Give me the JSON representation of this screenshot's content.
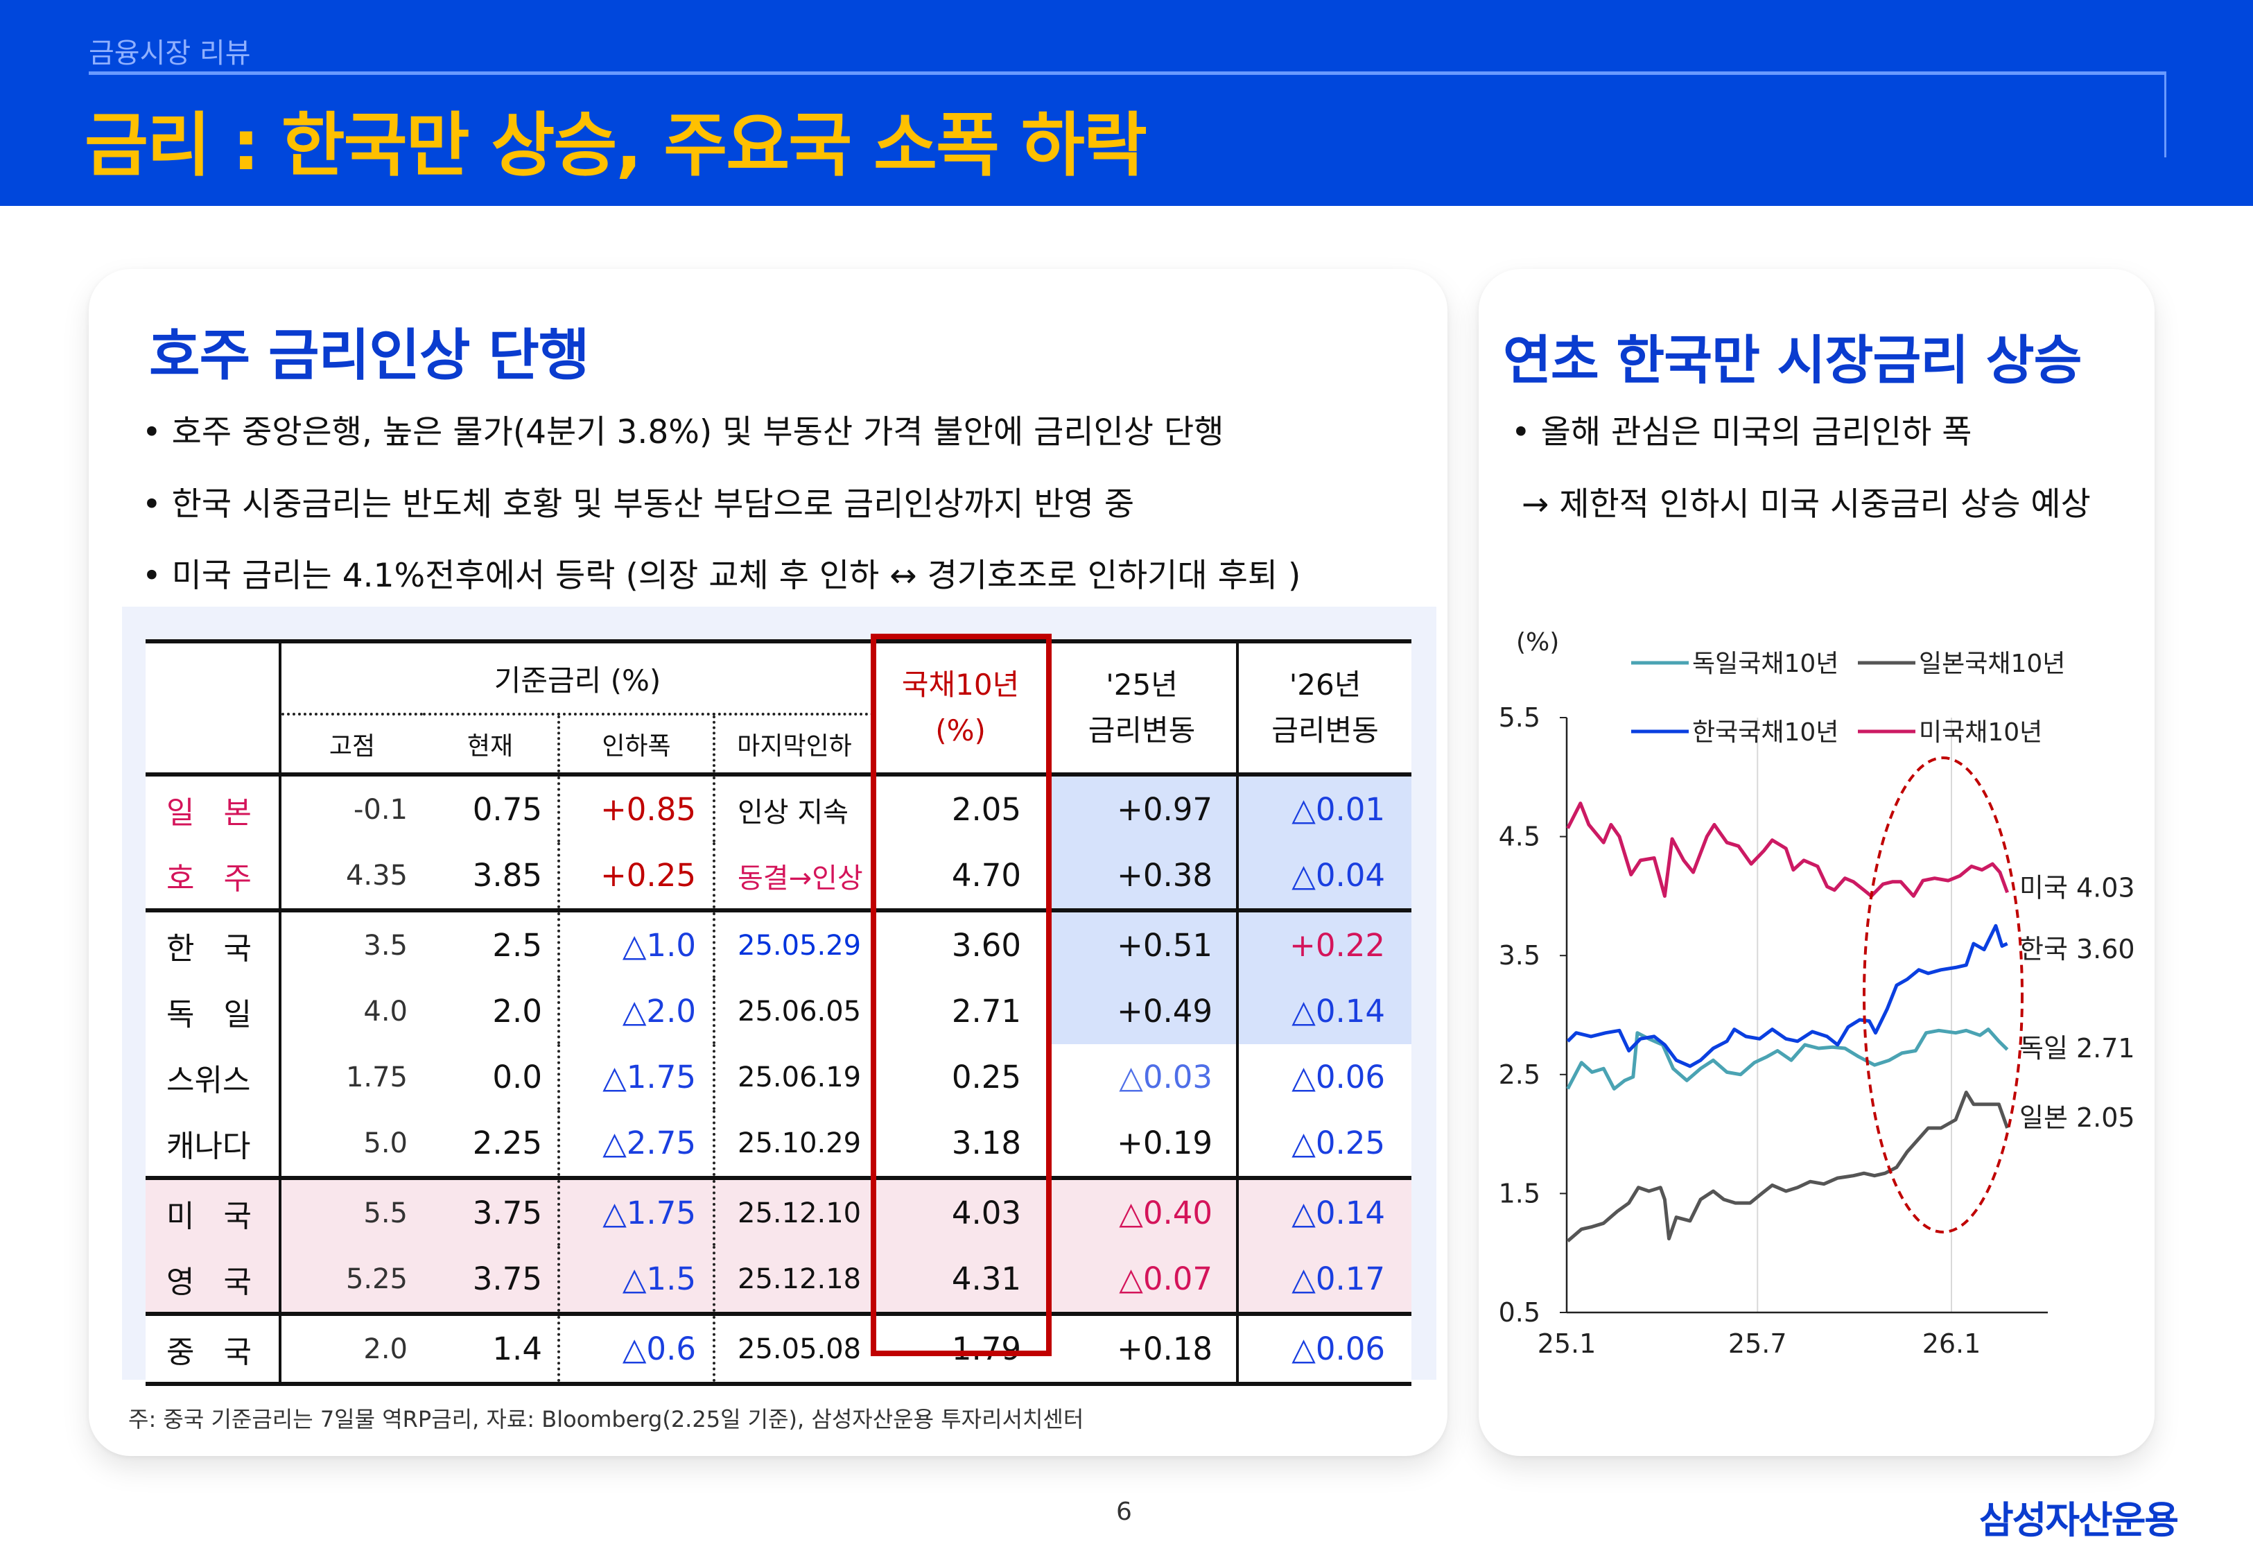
{
  "header": {
    "section": "금융시장 리뷰",
    "title": "금리 : 한국만 상승, 주요국 소폭 하락"
  },
  "left": {
    "title": "호주 금리인상 단행",
    "bullets": [
      "• 호주 중앙은행, 높은 물가(4분기 3.8%) 및 부동산 가격 불안에 금리인상 단행",
      "• 한국 시중금리는 반도체 호황 및 부동산 부담으로 금리인상까지 반영 중",
      "• 미국 금리는 4.1%전후에서 등락 (의장 교체 후 인하 ↔ 경기호조로 인하기대 후퇴 )"
    ],
    "table": {
      "group_header": "기준금리 (%)",
      "sub_headers": [
        "고점",
        "현재",
        "인하폭",
        "마지막인하"
      ],
      "bond_header": [
        "국채10년",
        "(%)"
      ],
      "chg25_header": [
        "'25년",
        "금리변동"
      ],
      "chg26_header": [
        "'26년",
        "금리변동"
      ],
      "rows": [
        {
          "country": "일 본",
          "peak": "-0.1",
          "current": "0.75",
          "cut": "+0.85",
          "last_cut": "인상 지속",
          "bond10y": "2.05",
          "chg25": "+0.97",
          "chg26": "△0.01",
          "tone": {
            "country": "#d4145a",
            "cut": "#c00000",
            "last_cut": "#111111",
            "chg25": "#111111",
            "chg26": "#1a3fe0"
          },
          "highlight": "blue-changes"
        },
        {
          "country": "호 주",
          "peak": "4.35",
          "current": "3.85",
          "cut": "+0.25",
          "last_cut": "동결→인상",
          "bond10y": "4.70",
          "chg25": "+0.38",
          "chg26": "△0.04",
          "tone": {
            "country": "#d4145a",
            "cut": "#c00000",
            "last_cut": "#d4145a",
            "chg25": "#111111",
            "chg26": "#1a3fe0"
          },
          "highlight": "blue-changes"
        },
        {
          "country": "한 국",
          "peak": "3.5",
          "current": "2.5",
          "cut": "△1.0",
          "last_cut": "25.05.29",
          "bond10y": "3.60",
          "chg25": "+0.51",
          "chg26": "+0.22",
          "tone": {
            "country": "#111111",
            "cut": "#1a3fe0",
            "last_cut": "#0033dd",
            "chg25": "#111111",
            "chg26": "#d4145a"
          },
          "highlight": "blue-changes"
        },
        {
          "country": "독 일",
          "peak": "4.0",
          "current": "2.0",
          "cut": "△2.0",
          "last_cut": "25.06.05",
          "bond10y": "2.71",
          "chg25": "+0.49",
          "chg26": "△0.14",
          "tone": {
            "country": "#111111",
            "cut": "#1a3fe0",
            "last_cut": "#111111",
            "chg25": "#111111",
            "chg26": "#1a3fe0"
          },
          "highlight": "blue-changes"
        },
        {
          "country": "스위스",
          "peak": "1.75",
          "current": "0.0",
          "cut": "△1.75",
          "last_cut": "25.06.19",
          "bond10y": "0.25",
          "chg25": "△0.03",
          "chg26": "△0.06",
          "tone": {
            "country": "#111111",
            "cut": "#1a3fe0",
            "last_cut": "#111111",
            "chg25": "#4f6fe8",
            "chg26": "#1a3fe0"
          },
          "highlight": "none"
        },
        {
          "country": "캐나다",
          "peak": "5.0",
          "current": "2.25",
          "cut": "△2.75",
          "last_cut": "25.10.29",
          "bond10y": "3.18",
          "chg25": "+0.19",
          "chg26": "△0.25",
          "tone": {
            "country": "#111111",
            "cut": "#1a3fe0",
            "last_cut": "#111111",
            "chg25": "#111111",
            "chg26": "#1a3fe0"
          },
          "highlight": "none"
        },
        {
          "country": "미 국",
          "peak": "5.5",
          "current": "3.75",
          "cut": "△1.75",
          "last_cut": "25.12.10",
          "bond10y": "4.03",
          "chg25": "△0.40",
          "chg26": "△0.14",
          "tone": {
            "country": "#111111",
            "cut": "#1a3fe0",
            "last_cut": "#111111",
            "chg25": "#d4145a",
            "chg26": "#1a3fe0"
          },
          "highlight": "pink-row"
        },
        {
          "country": "영 국",
          "peak": "5.25",
          "current": "3.75",
          "cut": "△1.5",
          "last_cut": "25.12.18",
          "bond10y": "4.31",
          "chg25": "△0.07",
          "chg26": "△0.17",
          "tone": {
            "country": "#111111",
            "cut": "#1a3fe0",
            "last_cut": "#111111",
            "chg25": "#d4145a",
            "chg26": "#1a3fe0"
          },
          "highlight": "pink-row"
        },
        {
          "country": "중 국",
          "peak": "2.0",
          "current": "1.4",
          "cut": "△0.6",
          "last_cut": "25.05.08",
          "bond10y": "1.79",
          "chg25": "+0.18",
          "chg26": "△0.06",
          "tone": {
            "country": "#111111",
            "cut": "#1a3fe0",
            "last_cut": "#111111",
            "chg25": "#111111",
            "chg26": "#1a3fe0"
          },
          "highlight": "none"
        }
      ]
    },
    "footnote": "주: 중국 기준금리는 7일물 역RP금리, 자료: Bloomberg(2.25일 기준), 삼성자산운용 투자리서치센터"
  },
  "right": {
    "title": "연초 한국만 시장금리 상승",
    "bullets": [
      "• 올해 관심은 미국의 금리인하 폭",
      "→ 제한적 인하시 미국 시중금리 상승 예상"
    ]
  },
  "chart_data": {
    "type": "line",
    "ylabel": "(%)",
    "ylim": [
      0.5,
      5.5
    ],
    "yticks": [
      "5.5",
      "4.5",
      "3.5",
      "2.5",
      "1.5",
      "0.5"
    ],
    "xlim": [
      "2025-01-01",
      "2026-04-03"
    ],
    "xticks": [
      {
        "label": "25.1",
        "date": "2025-01-01"
      },
      {
        "label": "25.7",
        "date": "2025-07-01"
      },
      {
        "label": "26.1",
        "date": "2026-01-01"
      }
    ],
    "grid": "vertical at x ticks",
    "legend": "top",
    "annotation": "dashed red ellipse around Nov 2025 – Feb 2026",
    "series": [
      {
        "name": "독일국채10년",
        "end_label": "독일 2.71",
        "color": "#4aa3b3",
        "points": [
          [
            "2025-01-02",
            2.38
          ],
          [
            "2025-01-15",
            2.6
          ],
          [
            "2025-01-25",
            2.52
          ],
          [
            "2025-02-05",
            2.55
          ],
          [
            "2025-02-15",
            2.38
          ],
          [
            "2025-02-25",
            2.45
          ],
          [
            "2025-03-05",
            2.48
          ],
          [
            "2025-03-09",
            2.85
          ],
          [
            "2025-03-20",
            2.8
          ],
          [
            "2025-04-02",
            2.75
          ],
          [
            "2025-04-12",
            2.55
          ],
          [
            "2025-04-25",
            2.45
          ],
          [
            "2025-05-08",
            2.55
          ],
          [
            "2025-05-20",
            2.62
          ],
          [
            "2025-06-02",
            2.52
          ],
          [
            "2025-06-15",
            2.5
          ],
          [
            "2025-06-28",
            2.6
          ],
          [
            "2025-07-10",
            2.65
          ],
          [
            "2025-07-20",
            2.7
          ],
          [
            "2025-08-02",
            2.62
          ],
          [
            "2025-08-15",
            2.75
          ],
          [
            "2025-08-28",
            2.72
          ],
          [
            "2025-09-10",
            2.73
          ],
          [
            "2025-09-22",
            2.72
          ],
          [
            "2025-10-05",
            2.65
          ],
          [
            "2025-10-20",
            2.58
          ],
          [
            "2025-11-03",
            2.62
          ],
          [
            "2025-11-15",
            2.68
          ],
          [
            "2025-11-28",
            2.7
          ],
          [
            "2025-12-08",
            2.85
          ],
          [
            "2025-12-20",
            2.87
          ],
          [
            "2026-01-05",
            2.85
          ],
          [
            "2026-01-15",
            2.87
          ],
          [
            "2026-01-28",
            2.83
          ],
          [
            "2026-02-05",
            2.88
          ],
          [
            "2026-02-15",
            2.78
          ],
          [
            "2026-02-23",
            2.71
          ]
        ]
      },
      {
        "name": "일본국채10년",
        "end_label": "일본 2.05",
        "color": "#555555",
        "points": [
          [
            "2025-01-02",
            1.1
          ],
          [
            "2025-01-15",
            1.2
          ],
          [
            "2025-01-25",
            1.22
          ],
          [
            "2025-02-05",
            1.25
          ],
          [
            "2025-02-18",
            1.35
          ],
          [
            "2025-03-01",
            1.42
          ],
          [
            "2025-03-10",
            1.55
          ],
          [
            "2025-03-20",
            1.52
          ],
          [
            "2025-03-31",
            1.55
          ],
          [
            "2025-04-04",
            1.45
          ],
          [
            "2025-04-08",
            1.12
          ],
          [
            "2025-04-15",
            1.3
          ],
          [
            "2025-04-28",
            1.27
          ],
          [
            "2025-05-08",
            1.45
          ],
          [
            "2025-05-20",
            1.52
          ],
          [
            "2025-05-30",
            1.45
          ],
          [
            "2025-06-10",
            1.42
          ],
          [
            "2025-06-24",
            1.42
          ],
          [
            "2025-07-05",
            1.5
          ],
          [
            "2025-07-15",
            1.57
          ],
          [
            "2025-07-28",
            1.52
          ],
          [
            "2025-08-08",
            1.55
          ],
          [
            "2025-08-20",
            1.6
          ],
          [
            "2025-09-02",
            1.58
          ],
          [
            "2025-09-15",
            1.63
          ],
          [
            "2025-09-30",
            1.65
          ],
          [
            "2025-10-10",
            1.67
          ],
          [
            "2025-10-20",
            1.65
          ],
          [
            "2025-10-30",
            1.67
          ],
          [
            "2025-11-10",
            1.72
          ],
          [
            "2025-11-20",
            1.85
          ],
          [
            "2025-11-30",
            1.95
          ],
          [
            "2025-12-10",
            2.05
          ],
          [
            "2025-12-22",
            2.05
          ],
          [
            "2026-01-05",
            2.12
          ],
          [
            "2026-01-15",
            2.35
          ],
          [
            "2026-01-22",
            2.25
          ],
          [
            "2026-02-05",
            2.25
          ],
          [
            "2026-02-15",
            2.25
          ],
          [
            "2026-02-23",
            2.05
          ]
        ]
      },
      {
        "name": "한국국채10년",
        "end_label": "한국 3.60",
        "color": "#0a3fe0",
        "points": [
          [
            "2025-01-02",
            2.78
          ],
          [
            "2025-01-10",
            2.85
          ],
          [
            "2025-01-24",
            2.82
          ],
          [
            "2025-02-07",
            2.85
          ],
          [
            "2025-02-20",
            2.87
          ],
          [
            "2025-03-01",
            2.7
          ],
          [
            "2025-03-12",
            2.8
          ],
          [
            "2025-03-25",
            2.82
          ],
          [
            "2025-04-04",
            2.75
          ],
          [
            "2025-04-15",
            2.62
          ],
          [
            "2025-04-28",
            2.57
          ],
          [
            "2025-05-08",
            2.62
          ],
          [
            "2025-05-20",
            2.72
          ],
          [
            "2025-06-02",
            2.78
          ],
          [
            "2025-06-09",
            2.88
          ],
          [
            "2025-06-20",
            2.82
          ],
          [
            "2025-07-03",
            2.8
          ],
          [
            "2025-07-15",
            2.88
          ],
          [
            "2025-07-28",
            2.8
          ],
          [
            "2025-08-08",
            2.78
          ],
          [
            "2025-08-22",
            2.86
          ],
          [
            "2025-09-05",
            2.82
          ],
          [
            "2025-09-15",
            2.75
          ],
          [
            "2025-09-25",
            2.9
          ],
          [
            "2025-10-06",
            2.96
          ],
          [
            "2025-10-15",
            2.95
          ],
          [
            "2025-10-21",
            2.85
          ],
          [
            "2025-11-01",
            3.05
          ],
          [
            "2025-11-10",
            3.25
          ],
          [
            "2025-11-20",
            3.3
          ],
          [
            "2025-12-01",
            3.38
          ],
          [
            "2025-12-10",
            3.35
          ],
          [
            "2025-12-22",
            3.38
          ],
          [
            "2026-01-05",
            3.4
          ],
          [
            "2026-01-15",
            3.42
          ],
          [
            "2026-01-22",
            3.6
          ],
          [
            "2026-02-01",
            3.55
          ],
          [
            "2026-02-12",
            3.75
          ],
          [
            "2026-02-18",
            3.58
          ],
          [
            "2026-02-23",
            3.6
          ]
        ]
      },
      {
        "name": "미국채10년",
        "end_label": "미국 4.03",
        "color": "#cc1a63",
        "points": [
          [
            "2025-01-02",
            4.57
          ],
          [
            "2025-01-14",
            4.78
          ],
          [
            "2025-01-22",
            4.6
          ],
          [
            "2025-02-05",
            4.45
          ],
          [
            "2025-02-12",
            4.6
          ],
          [
            "2025-02-20",
            4.5
          ],
          [
            "2025-03-03",
            4.18
          ],
          [
            "2025-03-12",
            4.3
          ],
          [
            "2025-03-25",
            4.32
          ],
          [
            "2025-04-04",
            4.0
          ],
          [
            "2025-04-11",
            4.48
          ],
          [
            "2025-04-22",
            4.3
          ],
          [
            "2025-05-01",
            4.2
          ],
          [
            "2025-05-14",
            4.5
          ],
          [
            "2025-05-21",
            4.6
          ],
          [
            "2025-06-02",
            4.45
          ],
          [
            "2025-06-13",
            4.42
          ],
          [
            "2025-06-25",
            4.27
          ],
          [
            "2025-07-07",
            4.38
          ],
          [
            "2025-07-15",
            4.47
          ],
          [
            "2025-07-28",
            4.4
          ],
          [
            "2025-08-04",
            4.22
          ],
          [
            "2025-08-14",
            4.3
          ],
          [
            "2025-08-27",
            4.25
          ],
          [
            "2025-09-05",
            4.08
          ],
          [
            "2025-09-12",
            4.05
          ],
          [
            "2025-09-22",
            4.15
          ],
          [
            "2025-09-30",
            4.12
          ],
          [
            "2025-10-10",
            4.05
          ],
          [
            "2025-10-17",
            4.0
          ],
          [
            "2025-10-28",
            4.1
          ],
          [
            "2025-11-06",
            4.12
          ],
          [
            "2025-11-14",
            4.12
          ],
          [
            "2025-11-26",
            4.0
          ],
          [
            "2025-12-05",
            4.13
          ],
          [
            "2025-12-16",
            4.15
          ],
          [
            "2025-12-29",
            4.13
          ],
          [
            "2026-01-09",
            4.17
          ],
          [
            "2026-01-20",
            4.25
          ],
          [
            "2026-01-30",
            4.22
          ],
          [
            "2026-02-09",
            4.27
          ],
          [
            "2026-02-16",
            4.2
          ],
          [
            "2026-02-23",
            4.03
          ]
        ]
      }
    ]
  },
  "footer": {
    "page": "6",
    "logo": "삼성자산운용"
  }
}
